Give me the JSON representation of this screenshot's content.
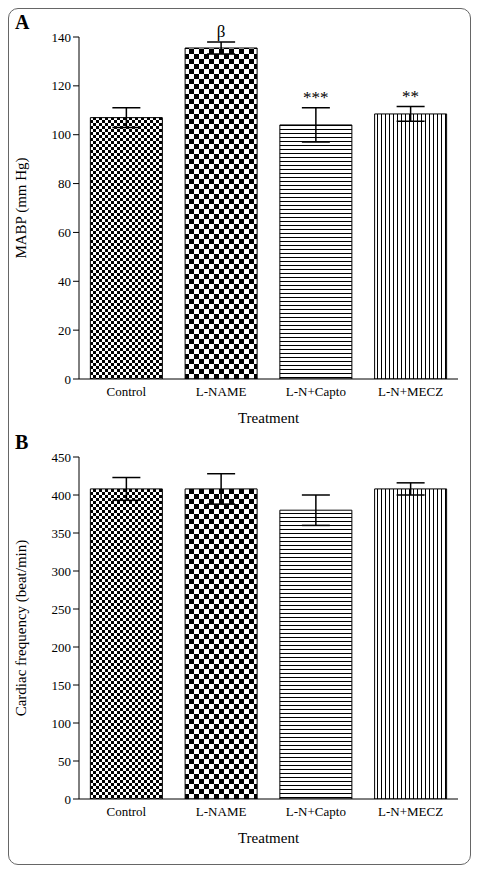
{
  "chart_data": [
    {
      "type": "bar",
      "panel": "A",
      "y_label": "MABP (mm Hg)",
      "x_label": "Treatment",
      "categories": [
        "Control",
        "L-NAME",
        "L-N+Capto",
        "L-N+MECZ"
      ],
      "values": [
        107,
        135.5,
        104,
        108.5
      ],
      "errors": [
        4,
        2.5,
        7,
        3
      ],
      "annotations": [
        null,
        "β",
        "***",
        "**"
      ],
      "color": "#000000",
      "ylim": [
        0,
        140
      ],
      "yticks": [
        0,
        20,
        40,
        60,
        80,
        100,
        120,
        140
      ]
    },
    {
      "type": "bar",
      "panel": "B",
      "y_label": "Cardiac frequency (beat/min)",
      "x_label": "Treatment",
      "categories": [
        "Control",
        "L-NAME",
        "L-N+Capto",
        "L-N+MECZ"
      ],
      "values": [
        408,
        408,
        380,
        408
      ],
      "errors": [
        15,
        20,
        20,
        8
      ],
      "color": "#000000",
      "ylim": [
        0,
        450
      ],
      "yticks": [
        0,
        50,
        100,
        150,
        200,
        250,
        300,
        350,
        400,
        450
      ]
    }
  ]
}
